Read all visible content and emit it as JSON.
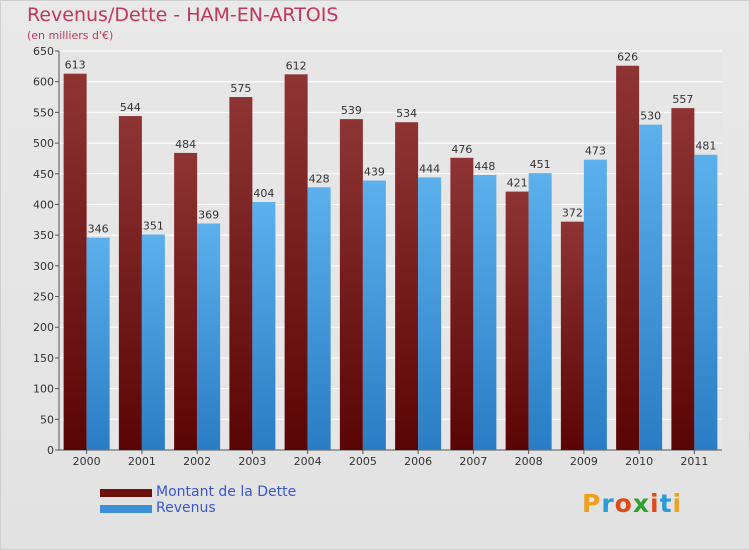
{
  "title": "Revenus/Dette - HAM-EN-ARTOIS",
  "subtitle": "(en milliers d'€)",
  "logo": {
    "text": "Proxiti",
    "colors": [
      "#f0a020",
      "#2a9ad8",
      "#e04a1a",
      "#30a030",
      "#e04a1a",
      "#2a9ad8",
      "#f0a020"
    ]
  },
  "legend": [
    {
      "label": "Montant de la Dette",
      "color": "#6b0f0f"
    },
    {
      "label": "Revenus",
      "color": "#3c8fd8"
    }
  ],
  "chart_data": {
    "type": "bar",
    "categories": [
      "2000",
      "2001",
      "2002",
      "2003",
      "2004",
      "2005",
      "2006",
      "2007",
      "2008",
      "2009",
      "2010",
      "2011"
    ],
    "series": [
      {
        "name": "Montant de la Dette",
        "color": "#6b0f0f",
        "values": [
          613,
          544,
          484,
          575,
          612,
          539,
          534,
          476,
          421,
          372,
          626,
          557
        ]
      },
      {
        "name": "Revenus",
        "color": "#3c8fd8",
        "values": [
          346,
          351,
          369,
          404,
          428,
          439,
          444,
          448,
          451,
          473,
          530,
          481
        ]
      }
    ],
    "ylim": [
      0,
      650
    ],
    "yticks": [
      0,
      50,
      100,
      150,
      200,
      250,
      300,
      350,
      400,
      450,
      500,
      550,
      600,
      650
    ],
    "grid": true,
    "title": "Revenus/Dette - HAM-EN-ARTOIS",
    "ylabel": "(en milliers d'€)",
    "xlabel": ""
  }
}
